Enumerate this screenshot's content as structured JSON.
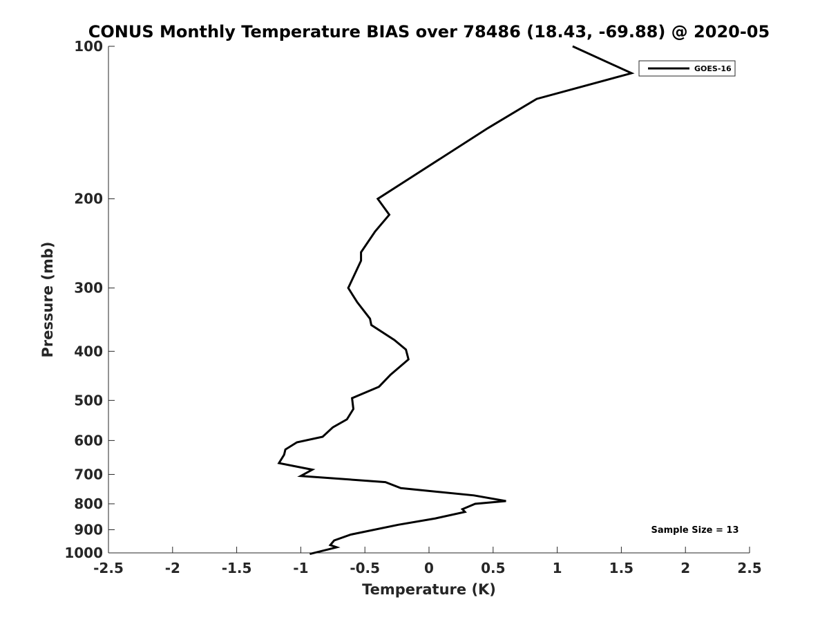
{
  "chart_data": {
    "type": "line",
    "title": "CONUS Monthly Temperature BIAS over 78486 (18.43, -69.88) @ 2020-05",
    "xlabel": "Temperature (K)",
    "ylabel": "Pressure (mb)",
    "xlim": [
      -2.5,
      2.5
    ],
    "ylim": [
      1000,
      100
    ],
    "yscale": "log",
    "y_reversed": true,
    "grid": false,
    "legend_position": "top-right",
    "xticks": [
      -2.5,
      -2,
      -1.5,
      -1,
      -0.5,
      0,
      0.5,
      1,
      1.5,
      2,
      2.5
    ],
    "xtick_labels": [
      "-2.5",
      "-2",
      "-1.5",
      "-1",
      "-0.5",
      "0",
      "0.5",
      "1",
      "1.5",
      "2",
      "2.5"
    ],
    "yticks": [
      100,
      200,
      300,
      400,
      500,
      600,
      700,
      800,
      900,
      1000
    ],
    "ytick_labels": [
      "100",
      "200",
      "300",
      "400",
      "500",
      "600",
      "700",
      "800",
      "900",
      "1000"
    ],
    "series": [
      {
        "name": "GOES-16",
        "color": "#000000",
        "x": [
          1.12,
          1.58,
          0.84,
          0.46,
          -0.4,
          -0.31,
          -0.42,
          -0.53,
          -0.53,
          -0.63,
          -0.56,
          -0.46,
          -0.45,
          -0.27,
          -0.18,
          -0.16,
          -0.3,
          -0.39,
          -0.6,
          -0.59,
          -0.64,
          -0.75,
          -0.83,
          -1.03,
          -1.12,
          -1.13,
          -1.17,
          -0.91,
          -1.0,
          -0.34,
          -0.22,
          0.35,
          0.6,
          0.36,
          0.26,
          0.28,
          0.05,
          -0.24,
          -0.61,
          -0.74,
          -0.77,
          -0.72,
          -0.93
        ],
        "y": [
          100,
          113,
          127,
          145,
          200,
          215,
          232,
          255,
          265,
          300,
          320,
          345,
          355,
          380,
          397,
          415,
          445,
          470,
          495,
          520,
          545,
          565,
          590,
          605,
          625,
          640,
          665,
          685,
          705,
          725,
          745,
          770,
          790,
          800,
          820,
          830,
          855,
          880,
          920,
          945,
          965,
          975,
          1005
        ]
      }
    ],
    "annotations": [
      {
        "text": "Sample Size = 13",
        "position": "bottom-right"
      }
    ]
  }
}
